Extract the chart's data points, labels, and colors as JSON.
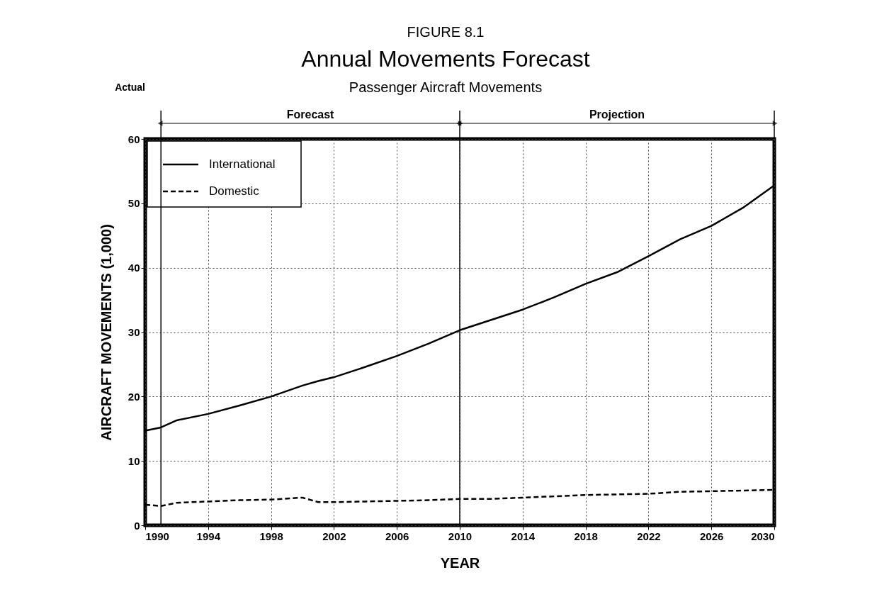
{
  "chart_data": {
    "type": "line",
    "title": "Annual Movements Forecast",
    "subtitle": "Passenger Aircraft Movements",
    "xlabel": "YEAR",
    "ylabel": "AIRCRAFT MOVEMENTS (1,000)",
    "annotations": [
      "FIGURE 8.1",
      "Actual",
      "Forecast",
      "Projection"
    ],
    "x": [
      1990,
      1991,
      1992,
      1994,
      1996,
      1998,
      2000,
      2001,
      2002,
      2004,
      2006,
      2008,
      2010,
      2012,
      2014,
      2016,
      2018,
      2020,
      2022,
      2024,
      2026,
      2028,
      2030
    ],
    "series": [
      {
        "name": "International",
        "color": "#000000",
        "line_style": "solid",
        "values": [
          14.7,
          15.2,
          16.3,
          17.3,
          18.6,
          20.0,
          21.7,
          22.4,
          23.0,
          24.6,
          26.3,
          28.2,
          30.3,
          31.9,
          33.5,
          35.4,
          37.5,
          39.3,
          41.8,
          44.4,
          46.5,
          49.3,
          52.8
        ]
      },
      {
        "name": "Domestic",
        "color": "#000000",
        "line_style": "dashed",
        "values": [
          3.2,
          3.0,
          3.5,
          3.7,
          3.9,
          4.0,
          4.3,
          3.6,
          3.6,
          3.7,
          3.8,
          3.9,
          4.1,
          4.1,
          4.3,
          4.5,
          4.7,
          4.8,
          4.9,
          5.2,
          5.3,
          5.4,
          5.5
        ]
      }
    ],
    "xlim": [
      1990,
      2030
    ],
    "xticks": [
      1990,
      1994,
      1998,
      2002,
      2006,
      2010,
      2014,
      2018,
      2022,
      2026,
      2030
    ],
    "ylim": [
      0,
      60
    ],
    "yticks": [
      0,
      10,
      20,
      30,
      40,
      50,
      60
    ],
    "ref_lines": [
      {
        "axis": "x",
        "value": 1991
      },
      {
        "axis": "x",
        "value": 2010
      }
    ],
    "grid": true,
    "legend": "top left"
  }
}
